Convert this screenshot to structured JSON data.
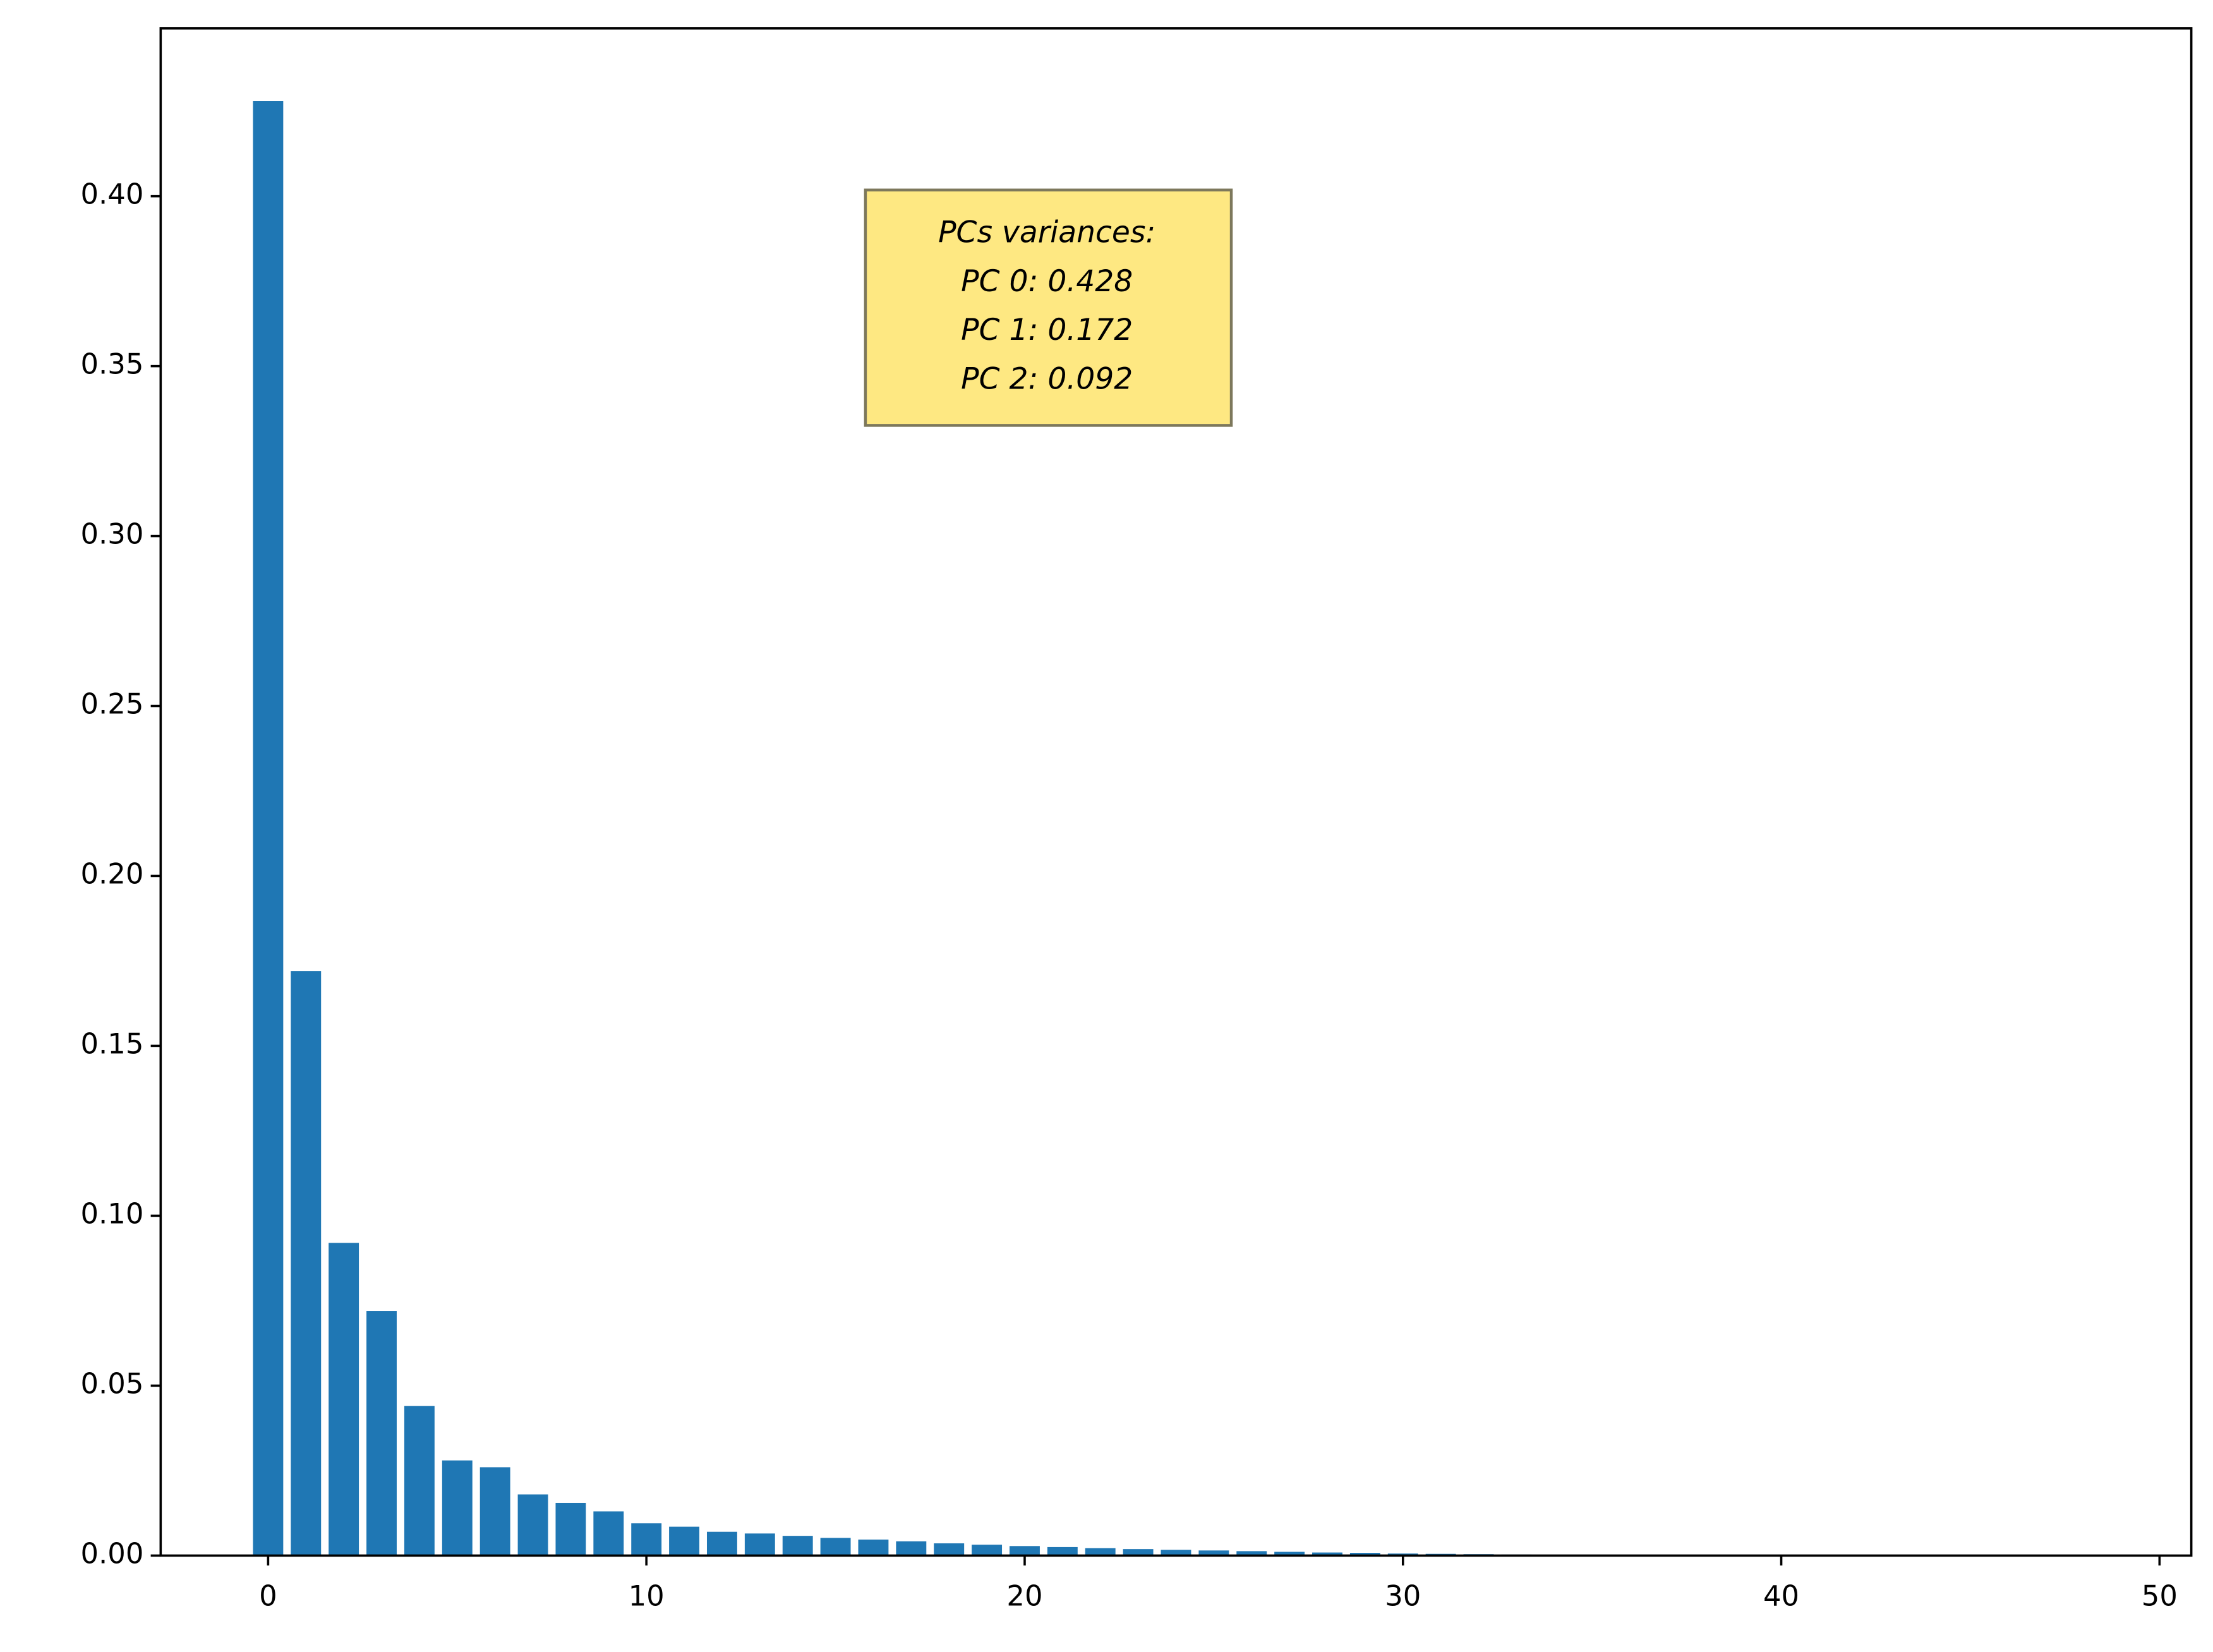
{
  "chart_data": {
    "type": "bar",
    "categories": [
      0,
      1,
      2,
      3,
      4,
      5,
      6,
      7,
      8,
      9,
      10,
      11,
      12,
      13,
      14,
      15,
      16,
      17,
      18,
      19,
      20,
      21,
      22,
      23,
      24,
      25,
      26,
      27,
      28,
      29,
      30,
      31,
      32,
      33,
      34,
      35,
      36,
      37,
      38,
      39,
      40,
      41,
      42,
      43,
      44,
      45,
      46,
      47,
      48
    ],
    "values": [
      0.428,
      0.172,
      0.092,
      0.072,
      0.044,
      0.028,
      0.026,
      0.018,
      0.0155,
      0.013,
      0.0095,
      0.0085,
      0.007,
      0.0065,
      0.0058,
      0.0052,
      0.0047,
      0.0042,
      0.0036,
      0.0032,
      0.0028,
      0.0025,
      0.0022,
      0.0019,
      0.0017,
      0.0015,
      0.0013,
      0.0011,
      0.0009,
      0.0008,
      0.0006,
      0.0005,
      0.0004,
      0.0003,
      0.0002,
      0.0001,
      0.0001,
      5e-05,
      5e-05,
      3e-05,
      2e-05,
      1e-05,
      1e-05,
      0,
      0,
      0,
      0,
      0,
      0
    ],
    "color": "#1f77b4",
    "xlim": [
      -2.84,
      50.84
    ],
    "xticks": [
      0,
      10,
      20,
      30,
      40,
      50
    ],
    "ylim": [
      0,
      0.4494
    ],
    "yticks": [
      {
        "value": 0,
        "label": "0.00"
      },
      {
        "value": 0.05,
        "label": "0.05"
      },
      {
        "value": 0.1,
        "label": "0.10"
      },
      {
        "value": 0.15,
        "label": "0.15"
      },
      {
        "value": 0.2,
        "label": "0.20"
      },
      {
        "value": 0.25,
        "label": "0.25"
      },
      {
        "value": 0.3,
        "label": "0.30"
      },
      {
        "value": 0.35,
        "label": "0.35"
      },
      {
        "value": 0.4,
        "label": "0.40"
      }
    ],
    "annotation": [
      "PCs variances:",
      "PC 0: 0.428",
      "PC 1: 0.172",
      "PC 2: 0.092"
    ]
  }
}
